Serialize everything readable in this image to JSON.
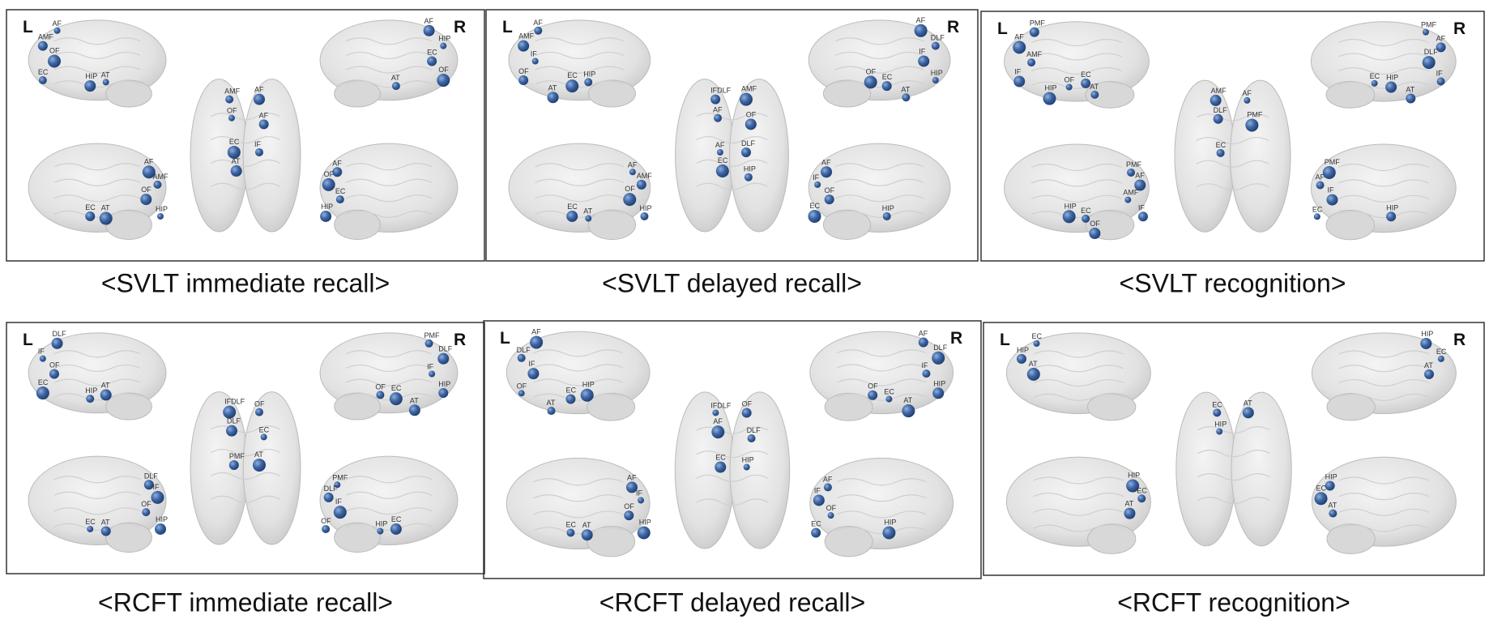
{
  "panels": [
    {
      "caption": "<SVLT immediate recall>",
      "left": "L",
      "right": "R",
      "views": [
        [
          "AF",
          "AMF",
          "OF",
          "EC",
          "HIP",
          "AT"
        ],
        [
          "AF",
          "HIP",
          "EC",
          "OF",
          "AT"
        ],
        [
          "AMF",
          "AF",
          "OF",
          "AF",
          "EC",
          "IF",
          "AT"
        ],
        [
          "AF",
          "AMF",
          "OF",
          "HIP",
          "EC",
          "AT"
        ],
        [
          "AF",
          "OF",
          "EC",
          "HIP"
        ]
      ]
    },
    {
      "caption": "<SVLT delayed recall>",
      "left": "L",
      "right": "R",
      "views": [
        [
          "AF",
          "AMF",
          "IF",
          "OF",
          "EC",
          "HIP",
          "AT"
        ],
        [
          "AF",
          "DLF",
          "IF",
          "HIP",
          "EC",
          "OF",
          "AT"
        ],
        [
          "IFDLF",
          "AMF",
          "AF",
          "OF",
          "AF",
          "DLF",
          "EC",
          "HIP"
        ],
        [
          "AF",
          "AMF",
          "OF",
          "HIP",
          "EC",
          "AT"
        ],
        [
          "AF",
          "IF",
          "OF",
          "EC",
          "HIP"
        ]
      ]
    },
    {
      "caption": "<SVLT recognition>",
      "left": "L",
      "right": "R",
      "views": [
        [
          "PMF",
          "AF",
          "AMF",
          "IF",
          "OF",
          "EC",
          "HIP",
          "AT"
        ],
        [
          "PMF",
          "AF",
          "DLF",
          "IF",
          "HIP",
          "EC",
          "AT"
        ],
        [
          "AMF",
          "AF",
          "DLF",
          "PMF",
          "EC"
        ],
        [
          "PMF",
          "AF",
          "AMF",
          "IF",
          "HIP",
          "EC",
          "OF"
        ],
        [
          "PMF",
          "AF",
          "IF",
          "EC",
          "HIP"
        ]
      ]
    },
    {
      "caption": "<RCFT immediate recall>",
      "left": "L",
      "right": "R",
      "views": [
        [
          "DLF",
          "IF",
          "OF",
          "EC",
          "HIP",
          "AT"
        ],
        [
          "PMF",
          "DLF",
          "IF",
          "HIP",
          "EC",
          "OF",
          "AT"
        ],
        [
          "IFDLF",
          "OF",
          "DLF",
          "EC",
          "PMF",
          "AT"
        ],
        [
          "DLF",
          "IF",
          "OF",
          "HIP",
          "EC",
          "AT"
        ],
        [
          "PMF",
          "DLF",
          "IF",
          "OF",
          "EC",
          "HIP"
        ]
      ]
    },
    {
      "caption": "<RCFT delayed recall>",
      "left": "L",
      "right": "R",
      "views": [
        [
          "AF",
          "DLF",
          "IF",
          "OF",
          "EC",
          "HIP",
          "AT"
        ],
        [
          "AF",
          "DLF",
          "IF",
          "HIP",
          "EC",
          "OF",
          "AT"
        ],
        [
          "IFDLF",
          "OF",
          "AF",
          "DLF",
          "EC",
          "HIP"
        ],
        [
          "AF",
          "IF",
          "OF",
          "HIP",
          "EC",
          "AT"
        ],
        [
          "AF",
          "IF",
          "OF",
          "EC",
          "HIP"
        ]
      ]
    },
    {
      "caption": "<RCFT recognition>",
      "left": "L",
      "right": "R",
      "views": [
        [
          "EC",
          "HIP",
          "AT"
        ],
        [
          "HIP",
          "EC",
          "AT"
        ],
        [
          "EC",
          "AT",
          "HIP"
        ],
        [
          "HIP",
          "EC",
          "AT"
        ],
        [
          "HIP",
          "EC",
          "AT"
        ]
      ]
    }
  ]
}
